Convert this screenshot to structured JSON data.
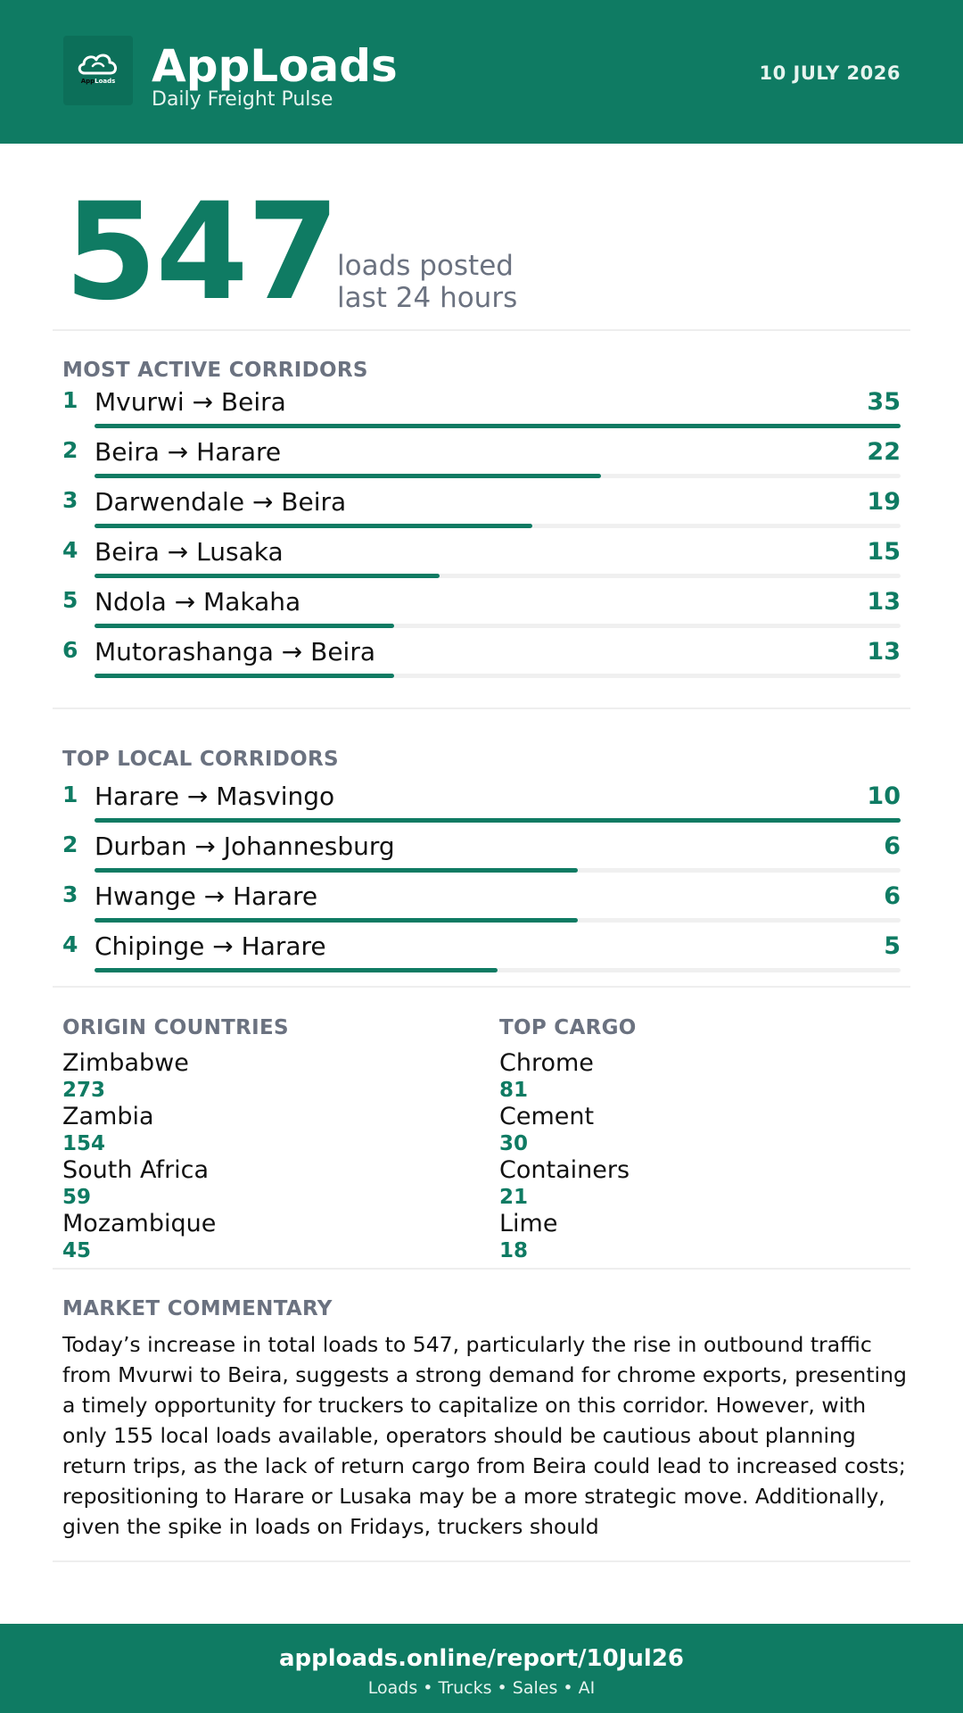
{
  "header": {
    "brand": "AppLoads",
    "subtitle": "Daily Freight Pulse",
    "date": "10 JULY 2026",
    "logo_text_a": "App",
    "logo_text_b": "Loads",
    "logo_icon": "cloud-icon"
  },
  "hero": {
    "total": "547",
    "line1": "loads posted",
    "line2": "last 24 hours"
  },
  "active_corridors": {
    "title": "MOST ACTIVE CORRIDORS",
    "max": 35,
    "items": [
      {
        "rank": "1",
        "route": "Mvurwi → Beira",
        "count": 35
      },
      {
        "rank": "2",
        "route": "Beira → Harare",
        "count": 22
      },
      {
        "rank": "3",
        "route": "Darwendale → Beira",
        "count": 19
      },
      {
        "rank": "4",
        "route": "Beira → Lusaka",
        "count": 15
      },
      {
        "rank": "5",
        "route": "Ndola → Makaha",
        "count": 13
      },
      {
        "rank": "6",
        "route": "Mutorashanga → Beira",
        "count": 13
      }
    ]
  },
  "local_corridors": {
    "title": "TOP LOCAL CORRIDORS",
    "max": 10,
    "items": [
      {
        "rank": "1",
        "route": "Harare → Masvingo",
        "count": 10
      },
      {
        "rank": "2",
        "route": "Durban → Johannesburg",
        "count": 6
      },
      {
        "rank": "3",
        "route": "Hwange → Harare",
        "count": 6
      },
      {
        "rank": "4",
        "route": "Chipinge → Harare",
        "count": 5
      }
    ]
  },
  "origin_countries": {
    "title": "ORIGIN COUNTRIES",
    "items": [
      {
        "name": "Zimbabwe",
        "value": "273"
      },
      {
        "name": "Zambia",
        "value": "154"
      },
      {
        "name": "South Africa",
        "value": "59"
      },
      {
        "name": "Mozambique",
        "value": "45"
      }
    ]
  },
  "top_cargo": {
    "title": "TOP CARGO",
    "items": [
      {
        "name": "Chrome",
        "value": "81"
      },
      {
        "name": "Cement",
        "value": "30"
      },
      {
        "name": "Containers",
        "value": "21"
      },
      {
        "name": "Lime",
        "value": "18"
      }
    ]
  },
  "commentary": {
    "title": "MARKET COMMENTARY",
    "text": "Today’s increase in total loads to 547, particularly the rise in outbound traffic from Mvurwi to Beira, suggests a strong demand for chrome exports, presenting a timely opportunity for truckers to capitalize on this corridor. However, with only 155 local loads available, operators should be cautious about planning return trips, as the lack of return cargo from Beira could lead to increased costs; repositioning to Harare or Lusaka may be a more strategic move. Additionally, given the spike in loads on Fridays, truckers should"
  },
  "footer": {
    "url": "apploads.online/report/10Jul26",
    "tagline": "Loads • Trucks • Sales • AI"
  },
  "colors": {
    "accent": "#0f7b63",
    "muted": "#6b7280",
    "track": "#f0f0f0"
  }
}
